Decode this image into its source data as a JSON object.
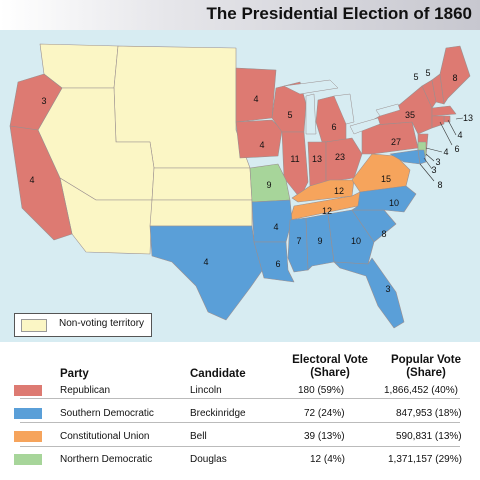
{
  "title": "The Presidential Election of 1860",
  "legend": {
    "label": "Non-voting territory",
    "color": "#fbf6c5"
  },
  "party_colors": {
    "Republican": "#dd7a72",
    "Southern Democratic": "#5a9fd8",
    "Constitutional Union": "#f6a45c",
    "Northern Democratic": "#a7d59a",
    "Non-voting": "#fbf6c5"
  },
  "state_electoral_votes": {
    "Oregon": "3",
    "California": "4",
    "Minnesota": "4",
    "Iowa": "4",
    "Wisconsin": "5",
    "Michigan": "6",
    "Illinois": "11",
    "Indiana": "13",
    "Ohio": "23",
    "Pennsylvania": "27",
    "New York": "35",
    "Vermont": "5",
    "New Hampshire": "5",
    "Maine": "8",
    "Massachusetts": "13",
    "Rhode Island": "4",
    "Connecticut": "6",
    "New Jersey": "4",
    "Delaware": "3",
    "Maryland": "8",
    "Missouri": "9",
    "Kentucky": "12",
    "Virginia": "15",
    "Tennessee": "12",
    "North Carolina": "10",
    "South Carolina": "8",
    "Georgia": "10",
    "Alabama": "9",
    "Mississippi": "7",
    "Louisiana": "6",
    "Arkansas": "4",
    "Texas": "4",
    "Florida": "3",
    "NJ-Douglas": "3"
  },
  "table": {
    "headers": {
      "party": "Party",
      "candidate": "Candidate",
      "electoral": [
        "Electoral Vote",
        "(Share)"
      ],
      "popular": [
        "Popular Vote",
        "(Share)"
      ]
    },
    "rows": [
      {
        "party": "Republican",
        "candidate": "Lincoln",
        "electoral": "180 (59%)",
        "popular": "1,866,452 (40%)",
        "color": "#dd7a72"
      },
      {
        "party": "Southern Democratic",
        "candidate": "Breckinridge",
        "electoral": "72 (24%)",
        "popular": "847,953 (18%)",
        "color": "#5a9fd8"
      },
      {
        "party": "Constitutional Union",
        "candidate": "Bell",
        "electoral": "39 (13%)",
        "popular": "590,831 (13%)",
        "color": "#f6a45c"
      },
      {
        "party": "Northern Democratic",
        "candidate": "Douglas",
        "electoral": "12 (4%)",
        "popular": "1,371,157 (29%)",
        "color": "#a7d59a"
      }
    ]
  }
}
